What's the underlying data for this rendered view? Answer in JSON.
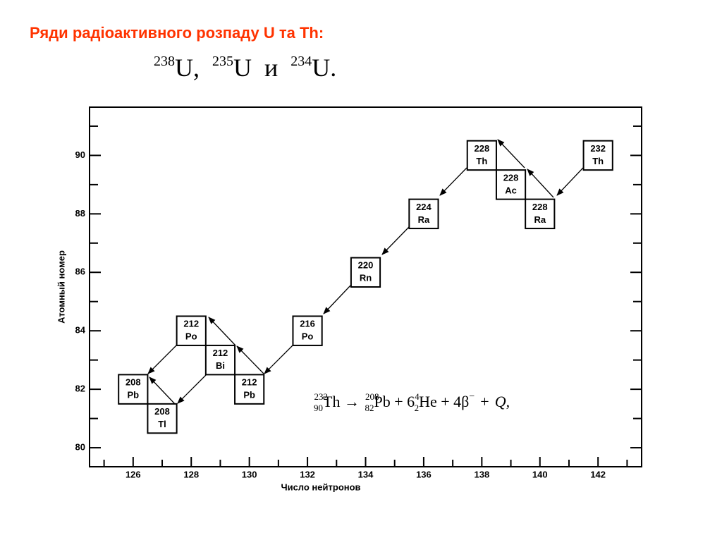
{
  "header": {
    "title": "Ряди радіоактивного розпаду U та Th:",
    "isotopes": [
      {
        "mass": "238",
        "symbol": "U,"
      },
      {
        "mass": "235",
        "symbol": "U"
      },
      {
        "word": "и"
      },
      {
        "mass": "234",
        "symbol": "U."
      }
    ]
  },
  "formula": {
    "parts": [
      "232",
      "90",
      "Th →",
      "208",
      "82",
      "Pb + 6",
      "4",
      "2",
      "He + 4β",
      "−",
      "+",
      "Q",
      ","
    ]
  },
  "chart_data": {
    "type": "decay-chain",
    "x_label": "Число нейтронов",
    "y_label": "Атомный номер",
    "xlim": [
      124.5,
      143.5
    ],
    "ylim": [
      79.35,
      91.65
    ],
    "xticks": [
      126,
      128,
      130,
      132,
      134,
      136,
      138,
      140,
      142
    ],
    "yticks": [
      80,
      82,
      84,
      86,
      88,
      90
    ],
    "xticks_minor": [
      125,
      127,
      129,
      131,
      133,
      135,
      137,
      139,
      141,
      143
    ],
    "yticks_minor": [
      81,
      83,
      85,
      87,
      89,
      91
    ],
    "nodes": [
      {
        "mass": "208",
        "symbol": "Pb",
        "n": 126,
        "z": 82
      },
      {
        "mass": "208",
        "symbol": "Tl",
        "n": 127,
        "z": 81
      },
      {
        "mass": "212",
        "symbol": "Po",
        "n": 128,
        "z": 84
      },
      {
        "mass": "212",
        "symbol": "Bi",
        "n": 129,
        "z": 83
      },
      {
        "mass": "212",
        "symbol": "Pb",
        "n": 130,
        "z": 82
      },
      {
        "mass": "216",
        "symbol": "Po",
        "n": 132,
        "z": 84
      },
      {
        "mass": "220",
        "symbol": "Rn",
        "n": 134,
        "z": 86
      },
      {
        "mass": "224",
        "symbol": "Ra",
        "n": 136,
        "z": 88
      },
      {
        "mass": "228",
        "symbol": "Th",
        "n": 138,
        "z": 90
      },
      {
        "mass": "228",
        "symbol": "Ac",
        "n": 139,
        "z": 89
      },
      {
        "mass": "228",
        "symbol": "Ra",
        "n": 140,
        "z": 88
      },
      {
        "mass": "232",
        "symbol": "Th",
        "n": 142,
        "z": 90
      }
    ]
  }
}
